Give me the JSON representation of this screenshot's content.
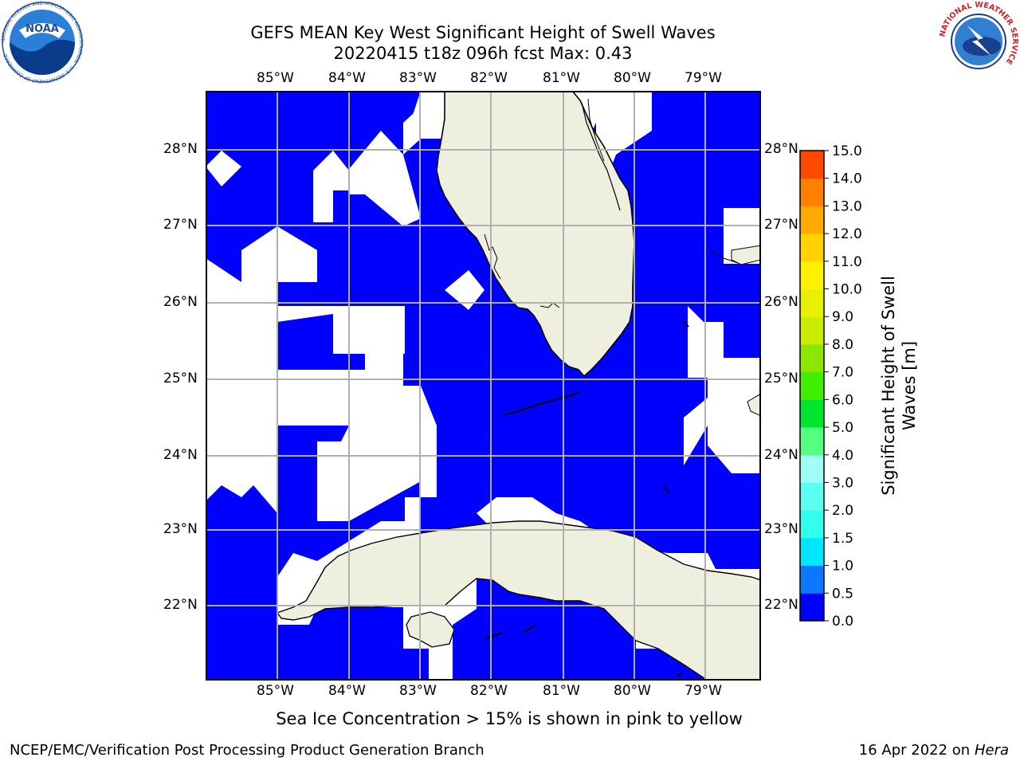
{
  "title_line1": "GEFS MEAN Key West Significant Height of Swell Waves",
  "title_line2": "20220415 t18z 096h fcst   Max: 0.43",
  "note": "Sea Ice Concentration > 15% is shown in pink to yellow",
  "footer_left": "NCEP/EMC/Verification Post Processing Product Generation Branch",
  "footer_right_date": "16 Apr 2022 on ",
  "footer_right_host": "Hera",
  "logos": {
    "noaa_text": "NOAA",
    "noaa_ring": "NATIONAL OCEANIC AND ATMOSPHERIC ADMINISTRATION · U.S. DEPARTMENT OF COMMERCE",
    "nws_ring": "NATIONAL WEATHER SERVICE"
  },
  "map": {
    "lon_labels": [
      "85°W",
      "84°W",
      "83°W",
      "82°W",
      "81°W",
      "80°W",
      "79°W"
    ],
    "lat_labels": [
      "28°N",
      "27°N",
      "26°N",
      "25°N",
      "24°N",
      "23°N",
      "22°N"
    ],
    "colors": {
      "ocean_swell": "#0000ff",
      "land": "#efefdf",
      "no_data": "#ffffff",
      "grid": "#b0b0b0"
    }
  },
  "colorbar": {
    "label_line1": "Significant Height of Swell",
    "label_line2": "Waves [m]",
    "ticks": [
      "0.0",
      "0.5",
      "1.0",
      "1.5",
      "2.0",
      "3.0",
      "4.0",
      "5.0",
      "6.0",
      "7.0",
      "8.0",
      "9.0",
      "10.0",
      "11.0",
      "12.0",
      "13.0",
      "14.0",
      "15.0"
    ],
    "colors": [
      "#0000ff",
      "#0a78ff",
      "#00e6ff",
      "#33ffee",
      "#5cfff2",
      "#a0fff5",
      "#55ff80",
      "#00e62e",
      "#40ef00",
      "#8ce600",
      "#c8eb00",
      "#e6f000",
      "#fff000",
      "#ffd200",
      "#ffaa00",
      "#ff8000",
      "#ff4800",
      "#ff0000"
    ]
  }
}
